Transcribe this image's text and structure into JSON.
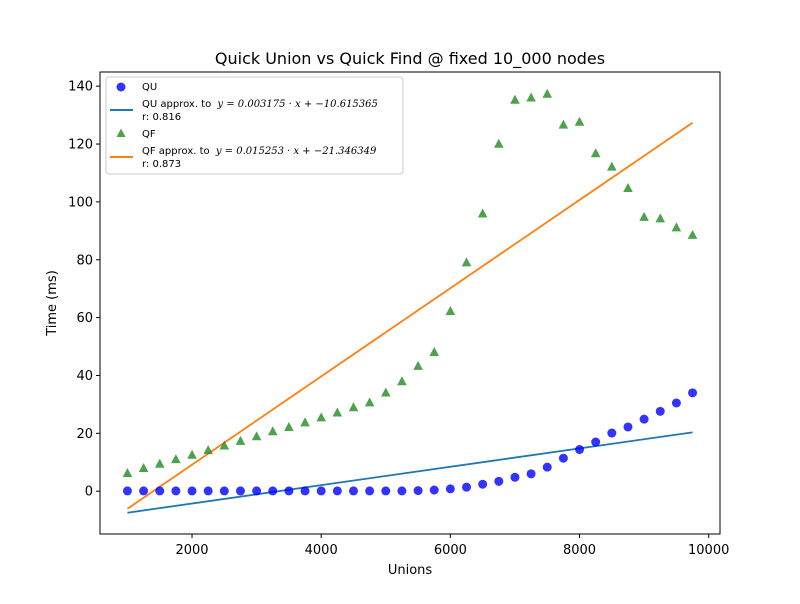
{
  "chart_data": {
    "type": "scatter",
    "title": "Quick Union vs Quick Find  @ fixed 10_000 nodes",
    "xlabel": "Unions",
    "ylabel": "Time (ms)",
    "xlim": [
      575,
      10175
    ],
    "ylim": [
      -14.8,
      144.9
    ],
    "xticks": [
      2000,
      4000,
      6000,
      8000,
      10000
    ],
    "xtick_labels": [
      "2000",
      "4000",
      "6000",
      "8000",
      "10000"
    ],
    "yticks": [
      0,
      20,
      40,
      60,
      80,
      100,
      120,
      140
    ],
    "ytick_labels": [
      "0",
      "20",
      "40",
      "60",
      "80",
      "100",
      "120",
      "140"
    ],
    "grid": false,
    "legend_position": "top-left",
    "x": [
      1000,
      1250,
      1500,
      1750,
      2000,
      2250,
      2500,
      2750,
      3000,
      3250,
      3500,
      3750,
      4000,
      4250,
      4500,
      4750,
      5000,
      5250,
      5500,
      5750,
      6000,
      6250,
      6500,
      6750,
      7000,
      7250,
      7500,
      7750,
      8000,
      8250,
      8500,
      8750,
      9000,
      9250,
      9500,
      9750
    ],
    "series": [
      {
        "name": "QU",
        "kind": "scatter",
        "marker": "circle",
        "color": "#0000ff",
        "values": [
          0.1,
          0.1,
          0.1,
          0.1,
          0.1,
          0.1,
          0.1,
          0.1,
          0.1,
          0.1,
          0.1,
          0.1,
          0.1,
          0.1,
          0.1,
          0.1,
          0.1,
          0.1,
          0.2,
          0.4,
          0.8,
          1.4,
          2.4,
          3.4,
          4.8,
          6.0,
          8.3,
          11.4,
          14.4,
          17.0,
          20.1,
          22.2,
          24.9,
          27.6,
          30.5,
          34.0
        ]
      },
      {
        "name": "QU approx. to",
        "formula": "y = 0.003175 · x + −10.615365",
        "r_label": "r: 0.816",
        "kind": "line",
        "color": "#1f77b4",
        "x": [
          1000,
          9750
        ],
        "values": [
          -7.44,
          20.34
        ]
      },
      {
        "name": "QF",
        "kind": "scatter",
        "marker": "triangle",
        "color": "#228b22",
        "values": [
          6.3,
          8.0,
          9.5,
          11.1,
          12.6,
          14.2,
          15.8,
          17.4,
          19.0,
          20.7,
          22.2,
          23.8,
          25.5,
          27.2,
          29.0,
          30.7,
          34.1,
          38.0,
          43.3,
          48.1,
          62.3,
          79.1,
          96.0,
          120.1,
          135.3,
          136.1,
          137.4,
          126.7,
          127.7,
          116.8,
          112.2,
          104.8,
          94.8,
          94.3,
          91.2,
          88.6
        ]
      },
      {
        "name": "QF approx. to",
        "formula": "y = 0.015253 · x + −21.346349",
        "r_label": "r: 0.873",
        "kind": "line",
        "color": "#ff7f0e",
        "x": [
          1000,
          9750
        ],
        "values": [
          -6.09,
          127.37
        ]
      }
    ]
  }
}
